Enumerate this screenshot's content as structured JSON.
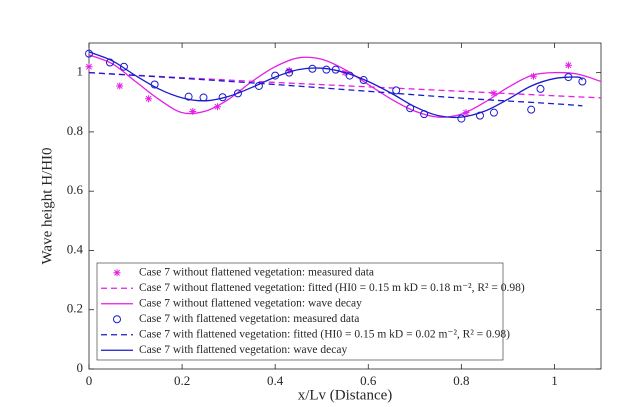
{
  "chart_data": {
    "type": "line",
    "x_label": "x/Lv (Distance)",
    "y_label": "Wave height H/HI0",
    "xlim": [
      0,
      1.1
    ],
    "ylim": [
      0,
      1.1
    ],
    "xticks": [
      0,
      0.2,
      0.4,
      0.6,
      0.8,
      1
    ],
    "yticks": [
      0,
      0.2,
      0.4,
      0.6,
      0.8,
      1
    ],
    "legend": "lower left",
    "series": [
      {
        "name": "Case 7 without flattened vegetation: measured data",
        "color": "#e61ee6",
        "style": "asterisk",
        "x": [
          0,
          0.066,
          0.128,
          0.223,
          0.276,
          0.43,
          0.55,
          0.81,
          0.87,
          0.955,
          1.03
        ],
        "values": [
          1.02,
          0.955,
          0.912,
          0.869,
          0.885,
          1.007,
          1.0,
          0.865,
          0.93,
          0.988,
          1.025
        ]
      },
      {
        "name": "Case 7 without flattened vegetation: fitted (HI0 = 0.15 m  kD = 0.18  m⁻², R² = 0.98)",
        "color": "#e61ee6",
        "style": "dashed",
        "x": [
          0,
          0.2,
          0.4,
          0.6,
          0.8,
          1,
          1.1
        ],
        "values": [
          1.0,
          0.983,
          0.967,
          0.952,
          0.937,
          0.922,
          0.915
        ]
      },
      {
        "name": "Case 7 without flattened vegetation: wave decay",
        "color": "#e61ee6",
        "style": "solid",
        "x": [
          0,
          0.05,
          0.1,
          0.15,
          0.2,
          0.25,
          0.3,
          0.35,
          0.4,
          0.45,
          0.5,
          0.55,
          0.6,
          0.65,
          0.7,
          0.75,
          0.8,
          0.85,
          0.9,
          0.95,
          1,
          1.05,
          1.1
        ],
        "values": [
          1.06,
          1.03,
          0.97,
          0.91,
          0.865,
          0.87,
          0.91,
          0.97,
          1.02,
          1.05,
          1.045,
          1.01,
          0.96,
          0.91,
          0.87,
          0.85,
          0.86,
          0.9,
          0.95,
          0.99,
          1.0,
          0.995,
          0.97
        ]
      },
      {
        "name": "Case 7 with flattened vegetation: measured data",
        "color": "#1a1acc",
        "style": "circle",
        "x": [
          0,
          0.045,
          0.075,
          0.141,
          0.214,
          0.246,
          0.287,
          0.32,
          0.365,
          0.4,
          0.43,
          0.48,
          0.51,
          0.53,
          0.56,
          0.59,
          0.66,
          0.69,
          0.72,
          0.8,
          0.84,
          0.87,
          0.95,
          0.97,
          1.03,
          1.06
        ],
        "values": [
          1.064,
          1.034,
          1.02,
          0.96,
          0.919,
          0.916,
          0.917,
          0.93,
          0.955,
          0.99,
          1.0,
          1.013,
          1.01,
          1.01,
          0.99,
          0.975,
          0.94,
          0.88,
          0.86,
          0.845,
          0.855,
          0.865,
          0.875,
          0.945,
          0.985,
          0.97
        ]
      },
      {
        "name": "Case 7 with flattened vegetation: fitted (HI0 = 0.15 m  kD = 0.02  m⁻², R² = 0.98)",
        "color": "#1a1acc",
        "style": "dashed",
        "x": [
          0,
          0.2,
          0.4,
          0.6,
          0.8,
          1,
          1.06
        ],
        "values": [
          1.0,
          0.981,
          0.96,
          0.937,
          0.914,
          0.895,
          0.888
        ]
      },
      {
        "name": "Case 7 with flattened vegetation: wave decay",
        "color": "#1a1acc",
        "style": "solid",
        "x": [
          0,
          0.05,
          0.1,
          0.15,
          0.2,
          0.25,
          0.3,
          0.35,
          0.4,
          0.45,
          0.5,
          0.55,
          0.6,
          0.65,
          0.7,
          0.75,
          0.8,
          0.85,
          0.9,
          0.95,
          1,
          1.05,
          1.06
        ],
        "values": [
          1.07,
          1.04,
          0.99,
          0.945,
          0.915,
          0.905,
          0.92,
          0.95,
          0.985,
          1.01,
          1.015,
          1.0,
          0.97,
          0.93,
          0.885,
          0.855,
          0.85,
          0.87,
          0.91,
          0.955,
          0.98,
          0.985,
          0.975
        ]
      }
    ]
  }
}
